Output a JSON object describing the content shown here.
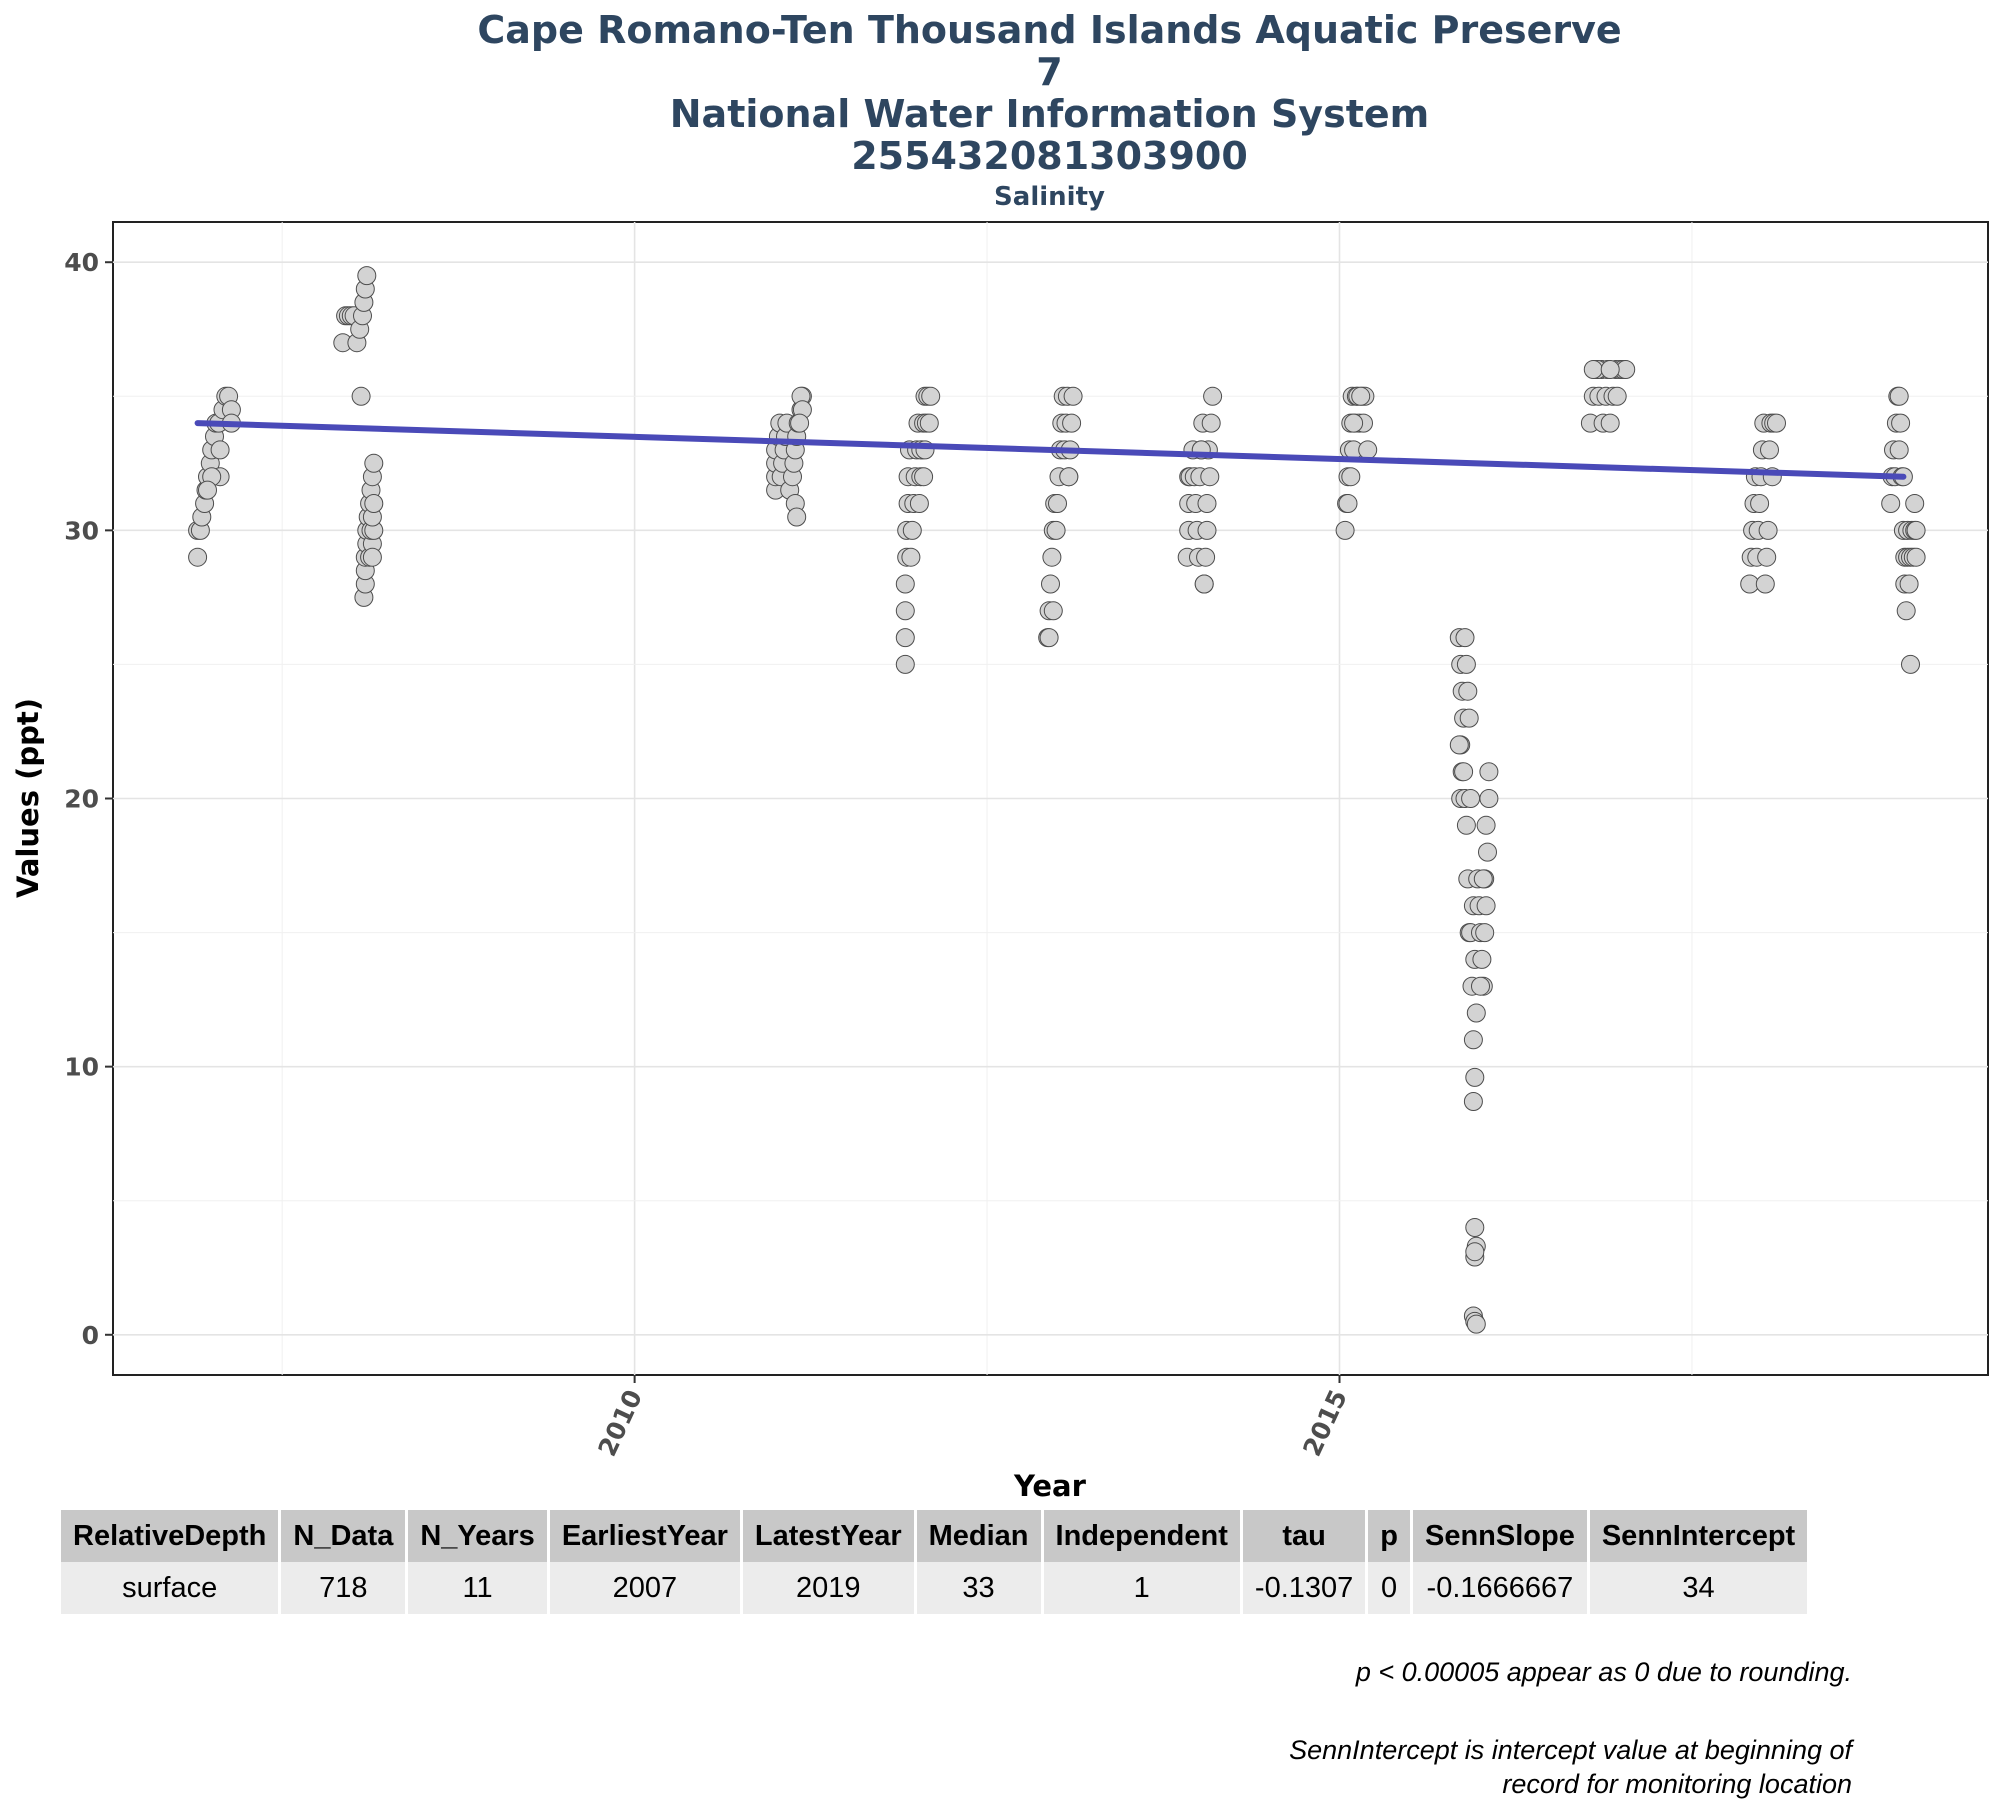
{
  "chart_data": {
    "type": "scatter",
    "title_lines": [
      "Cape Romano-Ten Thousand Islands Aquatic Preserve",
      "7",
      "National Water Information System",
      "255432081303900"
    ],
    "subtitle": "Salinity",
    "xlabel": "Year",
    "ylabel": "Values (ppt)",
    "xlim": [
      2006.3,
      2019.6
    ],
    "ylim": [
      -1.5,
      41.5
    ],
    "xticks": [
      2010,
      2015
    ],
    "yticks": [
      0,
      10,
      20,
      30,
      40
    ],
    "grid": true,
    "legend": "none",
    "colors": {
      "points_fill": "#d3d3d3",
      "points_stroke": "#4d4d4d",
      "trend": "#4a4ab8",
      "title": "#2e4660"
    },
    "trend_line": {
      "x": [
        2006.9,
        2019.0
      ],
      "y": [
        34.0,
        32.0
      ]
    },
    "points": [
      [
        2006.9,
        29
      ],
      [
        2006.9,
        30
      ],
      [
        2006.92,
        30
      ],
      [
        2006.93,
        30.5
      ],
      [
        2006.95,
        31
      ],
      [
        2006.96,
        31.5
      ],
      [
        2006.97,
        32
      ],
      [
        2006.99,
        32.5
      ],
      [
        2007.0,
        33
      ],
      [
        2007.02,
        33.5
      ],
      [
        2007.03,
        34
      ],
      [
        2007.05,
        34
      ],
      [
        2007.06,
        33
      ],
      [
        2007.08,
        34.5
      ],
      [
        2007.1,
        35
      ],
      [
        2007.12,
        35
      ],
      [
        2007.14,
        34.5
      ],
      [
        2007.14,
        34
      ],
      [
        2007.06,
        32
      ],
      [
        2007.0,
        32
      ],
      [
        2006.97,
        31.5
      ],
      [
        2007.93,
        37
      ],
      [
        2007.95,
        38
      ],
      [
        2007.97,
        38
      ],
      [
        2007.99,
        38
      ],
      [
        2008.01,
        38
      ],
      [
        2008.03,
        37
      ],
      [
        2008.05,
        37.5
      ],
      [
        2008.07,
        38
      ],
      [
        2008.08,
        38.5
      ],
      [
        2008.09,
        39
      ],
      [
        2008.1,
        39.5
      ],
      [
        2008.06,
        35
      ],
      [
        2008.08,
        27.5
      ],
      [
        2008.09,
        28
      ],
      [
        2008.09,
        28.5
      ],
      [
        2008.09,
        29
      ],
      [
        2008.1,
        29.5
      ],
      [
        2008.1,
        30
      ],
      [
        2008.11,
        30.5
      ],
      [
        2008.12,
        31
      ],
      [
        2008.13,
        31.5
      ],
      [
        2008.14,
        32
      ],
      [
        2008.15,
        32.5
      ],
      [
        2008.12,
        29
      ],
      [
        2008.14,
        29.5
      ],
      [
        2008.13,
        30
      ],
      [
        2008.15,
        30
      ],
      [
        2008.14,
        30.5
      ],
      [
        2008.15,
        31
      ],
      [
        2008.14,
        29
      ],
      [
        2011.0,
        31.5
      ],
      [
        2011.0,
        32
      ],
      [
        2011.0,
        32.5
      ],
      [
        2011.0,
        33
      ],
      [
        2011.02,
        33.5
      ],
      [
        2011.03,
        34
      ],
      [
        2011.04,
        32
      ],
      [
        2011.05,
        32.5
      ],
      [
        2011.06,
        33
      ],
      [
        2011.07,
        33.5
      ],
      [
        2011.08,
        34
      ],
      [
        2011.1,
        31.5
      ],
      [
        2011.12,
        32
      ],
      [
        2011.13,
        32.5
      ],
      [
        2011.14,
        33
      ],
      [
        2011.15,
        33.5
      ],
      [
        2011.16,
        34
      ],
      [
        2011.18,
        34.5
      ],
      [
        2011.19,
        35
      ],
      [
        2011.14,
        31
      ],
      [
        2011.15,
        30.5
      ],
      [
        2011.18,
        35
      ],
      [
        2011.19,
        34.5
      ],
      [
        2011.17,
        34
      ],
      [
        2011.92,
        25
      ],
      [
        2011.92,
        26
      ],
      [
        2011.92,
        27
      ],
      [
        2011.92,
        28
      ],
      [
        2011.93,
        29
      ],
      [
        2011.93,
        30
      ],
      [
        2011.94,
        31
      ],
      [
        2011.94,
        32
      ],
      [
        2011.95,
        33
      ],
      [
        2011.96,
        29
      ],
      [
        2011.97,
        30
      ],
      [
        2011.98,
        31
      ],
      [
        2011.99,
        32
      ],
      [
        2012.0,
        33
      ],
      [
        2012.01,
        34
      ],
      [
        2012.02,
        31
      ],
      [
        2012.03,
        32
      ],
      [
        2012.04,
        33
      ],
      [
        2012.05,
        34
      ],
      [
        2012.06,
        35
      ],
      [
        2012.07,
        34
      ],
      [
        2012.08,
        35
      ],
      [
        2012.09,
        34
      ],
      [
        2012.1,
        35
      ],
      [
        2012.05,
        32
      ],
      [
        2012.03,
        33
      ],
      [
        2012.06,
        33
      ],
      [
        2012.93,
        26
      ],
      [
        2012.94,
        27
      ],
      [
        2012.95,
        28
      ],
      [
        2012.96,
        29
      ],
      [
        2012.97,
        30
      ],
      [
        2012.98,
        31
      ],
      [
        2012.99,
        30
      ],
      [
        2013.0,
        31
      ],
      [
        2013.01,
        32
      ],
      [
        2013.02,
        33
      ],
      [
        2013.03,
        34
      ],
      [
        2013.04,
        35
      ],
      [
        2013.05,
        33
      ],
      [
        2013.06,
        34
      ],
      [
        2013.07,
        35
      ],
      [
        2013.08,
        32
      ],
      [
        2013.09,
        33
      ],
      [
        2013.1,
        34
      ],
      [
        2013.11,
        35
      ],
      [
        2012.94,
        26
      ],
      [
        2012.97,
        27
      ],
      [
        2013.08,
        32
      ],
      [
        2013.92,
        29
      ],
      [
        2013.93,
        30
      ],
      [
        2013.93,
        31
      ],
      [
        2013.93,
        32
      ],
      [
        2013.94,
        32
      ],
      [
        2013.96,
        33
      ],
      [
        2013.97,
        32
      ],
      [
        2013.98,
        31
      ],
      [
        2013.99,
        30
      ],
      [
        2014.0,
        29
      ],
      [
        2014.01,
        32
      ],
      [
        2014.02,
        33
      ],
      [
        2014.03,
        34
      ],
      [
        2014.04,
        28
      ],
      [
        2014.05,
        29
      ],
      [
        2014.06,
        30
      ],
      [
        2014.06,
        31
      ],
      [
        2014.07,
        33
      ],
      [
        2014.08,
        32
      ],
      [
        2014.09,
        34
      ],
      [
        2014.1,
        35
      ],
      [
        2014.04,
        28
      ],
      [
        2014.02,
        33
      ],
      [
        2015.04,
        30
      ],
      [
        2015.05,
        31
      ],
      [
        2015.06,
        32
      ],
      [
        2015.07,
        33
      ],
      [
        2015.08,
        34
      ],
      [
        2015.09,
        35
      ],
      [
        2015.1,
        33
      ],
      [
        2015.11,
        34
      ],
      [
        2015.12,
        35
      ],
      [
        2015.13,
        35
      ],
      [
        2015.14,
        34
      ],
      [
        2015.16,
        35
      ],
      [
        2015.17,
        34
      ],
      [
        2015.18,
        35
      ],
      [
        2015.2,
        33
      ],
      [
        2015.06,
        31
      ],
      [
        2015.08,
        32
      ],
      [
        2015.1,
        34
      ],
      [
        2015.15,
        35
      ],
      [
        2015.85,
        26
      ],
      [
        2015.86,
        25
      ],
      [
        2015.87,
        24
      ],
      [
        2015.88,
        23
      ],
      [
        2015.86,
        22
      ],
      [
        2015.85,
        22
      ],
      [
        2015.87,
        21
      ],
      [
        2015.86,
        20
      ],
      [
        2015.88,
        21
      ],
      [
        2015.89,
        26
      ],
      [
        2015.9,
        25
      ],
      [
        2015.91,
        24
      ],
      [
        2015.92,
        23
      ],
      [
        2015.89,
        20
      ],
      [
        2015.9,
        19
      ],
      [
        2015.91,
        17
      ],
      [
        2015.92,
        15
      ],
      [
        2015.93,
        20
      ],
      [
        2015.93,
        15
      ],
      [
        2015.94,
        13
      ],
      [
        2015.95,
        11
      ],
      [
        2015.95,
        16
      ],
      [
        2015.96,
        14
      ],
      [
        2015.97,
        12
      ],
      [
        2015.98,
        17
      ],
      [
        2015.99,
        16
      ],
      [
        2016.0,
        15
      ],
      [
        2016.01,
        14
      ],
      [
        2016.02,
        13
      ],
      [
        2016.03,
        17
      ],
      [
        2016.04,
        19
      ],
      [
        2016.05,
        18
      ],
      [
        2016.06,
        21
      ],
      [
        2016.06,
        20
      ],
      [
        2016.04,
        16
      ],
      [
        2016.0,
        13
      ],
      [
        2015.96,
        9.6
      ],
      [
        2015.95,
        8.7
      ],
      [
        2015.96,
        4
      ],
      [
        2015.97,
        3.3
      ],
      [
        2015.96,
        2.9
      ],
      [
        2015.95,
        0.7
      ],
      [
        2015.96,
        0.5
      ],
      [
        2015.97,
        0.4
      ],
      [
        2016.02,
        17
      ],
      [
        2016.03,
        15
      ],
      [
        2015.96,
        3.1
      ],
      [
        2016.78,
        34
      ],
      [
        2016.8,
        35
      ],
      [
        2016.82,
        36
      ],
      [
        2016.84,
        35
      ],
      [
        2016.86,
        36
      ],
      [
        2016.87,
        34
      ],
      [
        2016.89,
        35
      ],
      [
        2016.9,
        36
      ],
      [
        2016.92,
        34
      ],
      [
        2016.94,
        35
      ],
      [
        2016.96,
        36
      ],
      [
        2016.97,
        35
      ],
      [
        2016.99,
        36
      ],
      [
        2017.01,
        36
      ],
      [
        2017.03,
        36
      ],
      [
        2016.83,
        36
      ],
      [
        2016.8,
        36
      ],
      [
        2016.92,
        36
      ],
      [
        2017.91,
        28
      ],
      [
        2017.92,
        29
      ],
      [
        2017.93,
        30
      ],
      [
        2017.94,
        31
      ],
      [
        2017.95,
        32
      ],
      [
        2017.96,
        29
      ],
      [
        2017.97,
        30
      ],
      [
        2017.98,
        31
      ],
      [
        2017.99,
        32
      ],
      [
        2018.0,
        33
      ],
      [
        2018.01,
        34
      ],
      [
        2018.02,
        28
      ],
      [
        2018.03,
        29
      ],
      [
        2018.04,
        30
      ],
      [
        2018.05,
        33
      ],
      [
        2018.06,
        34
      ],
      [
        2018.07,
        32
      ],
      [
        2018.08,
        34
      ],
      [
        2018.1,
        34
      ],
      [
        2018.91,
        31
      ],
      [
        2018.92,
        32
      ],
      [
        2018.93,
        33
      ],
      [
        2018.94,
        32
      ],
      [
        2018.95,
        34
      ],
      [
        2018.96,
        35
      ],
      [
        2018.97,
        33
      ],
      [
        2018.98,
        34
      ],
      [
        2018.99,
        32
      ],
      [
        2019.0,
        30
      ],
      [
        2019.01,
        29
      ],
      [
        2019.01,
        28
      ],
      [
        2019.02,
        27
      ],
      [
        2019.03,
        29
      ],
      [
        2019.03,
        30
      ],
      [
        2019.04,
        28
      ],
      [
        2019.05,
        29
      ],
      [
        2019.06,
        30
      ],
      [
        2019.07,
        29
      ],
      [
        2019.08,
        30
      ],
      [
        2019.08,
        31
      ],
      [
        2019.09,
        29
      ],
      [
        2019.09,
        30
      ],
      [
        2019.05,
        25
      ],
      [
        2019.0,
        32
      ],
      [
        2018.97,
        35
      ]
    ]
  },
  "table": {
    "headers": [
      "RelativeDepth",
      "N_Data",
      "N_Years",
      "EarliestYear",
      "LatestYear",
      "Median",
      "Independent",
      "tau",
      "p",
      "SennSlope",
      "SennIntercept"
    ],
    "rows": [
      [
        "surface",
        "718",
        "11",
        "2007",
        "2019",
        "33",
        "1",
        "-0.1307",
        "0",
        "-0.1666667",
        "34"
      ]
    ]
  },
  "footnotes": {
    "p_note": "p < 0.00005 appear as 0 due to rounding.",
    "senn_note_line1": "SennIntercept is intercept value at beginning of",
    "senn_note_line2": "record for monitoring location"
  }
}
